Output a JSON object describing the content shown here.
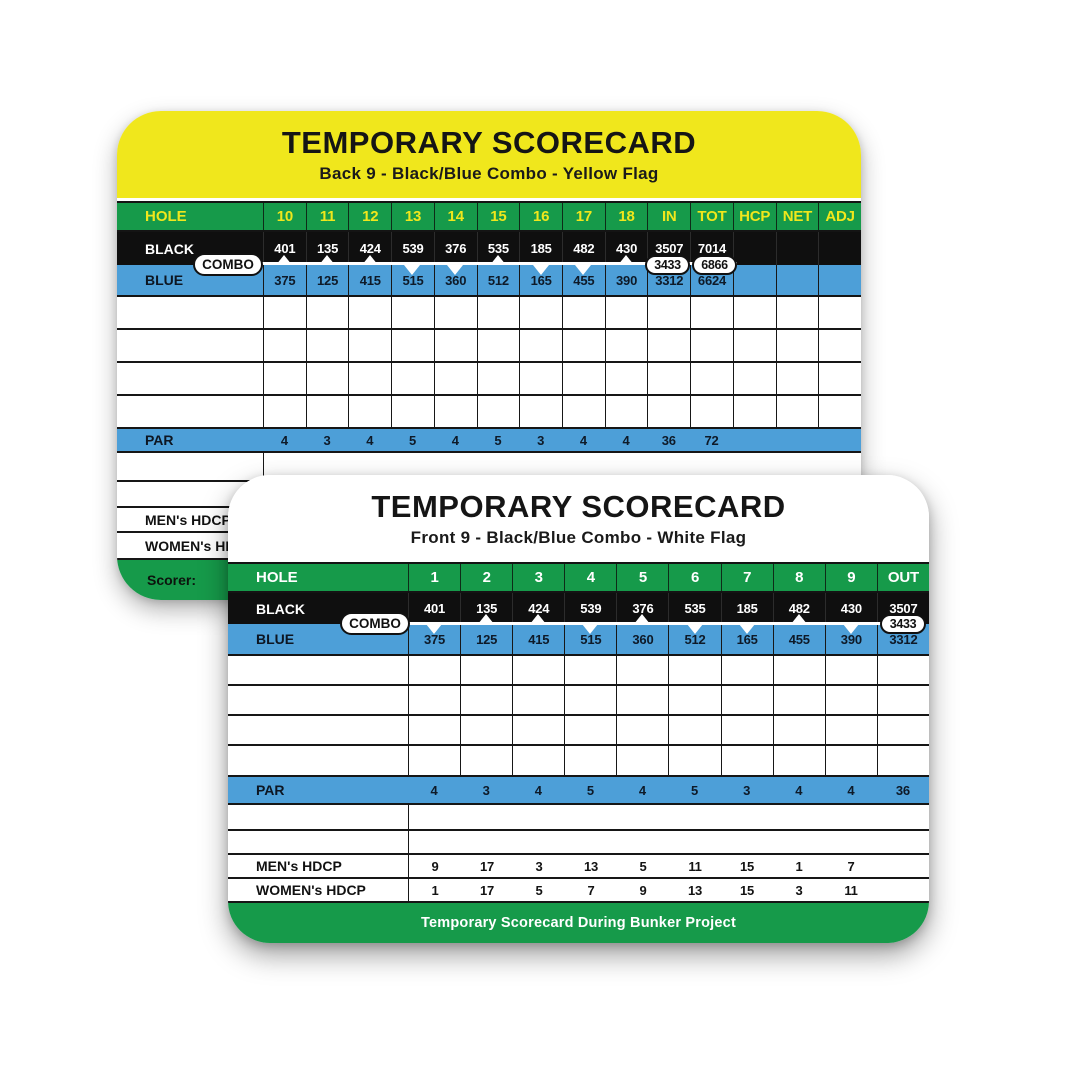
{
  "colors": {
    "header_yellow": "#F0E71C",
    "green": "#169A4A",
    "blue": "#4D9FD8",
    "black_row": "#0F0F0F",
    "hole_text_back": "#F0E71C",
    "hole_text_front": "#FFFFFF"
  },
  "back_card": {
    "title": "TEMPORARY SCORECARD",
    "subtitle": "Back 9 - Black/Blue Combo - Yellow Flag",
    "hole_row": {
      "label": "HOLE",
      "cols": [
        "10",
        "11",
        "12",
        "13",
        "14",
        "15",
        "16",
        "17",
        "18",
        "IN",
        "TOT",
        "HCP",
        "NET",
        "ADJ"
      ]
    },
    "black_row": {
      "label": "BLACK",
      "values": [
        "401",
        "135",
        "424",
        "539",
        "376",
        "535",
        "185",
        "482",
        "430",
        "3507",
        "7014",
        "",
        "",
        ""
      ]
    },
    "blue_row": {
      "label": "BLUE",
      "values": [
        "375",
        "125",
        "415",
        "515",
        "360",
        "512",
        "165",
        "455",
        "390",
        "3312",
        "6624",
        "",
        "",
        ""
      ]
    },
    "combo": {
      "label": "COMBO",
      "in_pill": "3433",
      "tot_pill": "6866",
      "markers": [
        "up",
        "up",
        "up",
        "down",
        "down",
        "up",
        "down",
        "down",
        "up"
      ]
    },
    "par_row": {
      "label": "PAR",
      "values": [
        "4",
        "3",
        "4",
        "5",
        "4",
        "5",
        "3",
        "4",
        "4",
        "36",
        "72",
        "",
        "",
        ""
      ]
    },
    "mens_hdcp_row": {
      "label": "MEN's HDCP"
    },
    "womens_hdcp_row": {
      "label": "WOMEN's HDCP"
    },
    "footer": {
      "scorer_label": "Scorer:"
    }
  },
  "front_card": {
    "title": "TEMPORARY SCORECARD",
    "subtitle": "Front 9 - Black/Blue Combo - White Flag",
    "hole_row": {
      "label": "HOLE",
      "cols": [
        "1",
        "2",
        "3",
        "4",
        "5",
        "6",
        "7",
        "8",
        "9",
        "OUT"
      ]
    },
    "black_row": {
      "label": "BLACK",
      "values": [
        "401",
        "135",
        "424",
        "539",
        "376",
        "535",
        "185",
        "482",
        "430",
        "3507"
      ]
    },
    "blue_row": {
      "label": "BLUE",
      "values": [
        "375",
        "125",
        "415",
        "515",
        "360",
        "512",
        "165",
        "455",
        "390",
        "3312"
      ]
    },
    "combo": {
      "label": "COMBO",
      "out_pill": "3433",
      "markers": [
        "down",
        "up",
        "up",
        "down",
        "up",
        "down",
        "down",
        "up",
        "down"
      ]
    },
    "par_row": {
      "label": "PAR",
      "values": [
        "4",
        "3",
        "4",
        "5",
        "4",
        "5",
        "3",
        "4",
        "4",
        "36"
      ]
    },
    "mens_hdcp_row": {
      "label": "MEN's HDCP",
      "values": [
        "9",
        "17",
        "3",
        "13",
        "5",
        "11",
        "15",
        "1",
        "7",
        ""
      ]
    },
    "womens_hdcp_row": {
      "label": "WOMEN's HDCP",
      "values": [
        "1",
        "17",
        "5",
        "7",
        "9",
        "13",
        "15",
        "3",
        "11",
        ""
      ]
    },
    "footer": {
      "text": "Temporary Scorecard During Bunker Project"
    }
  }
}
